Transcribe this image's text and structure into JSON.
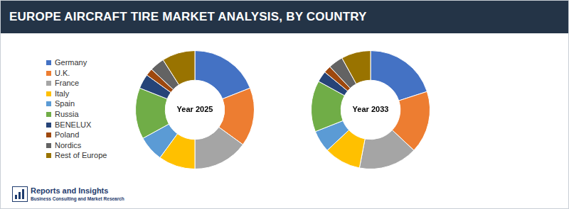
{
  "header": {
    "title": "EUROPE AIRCRAFT TIRE MARKET ANALYSIS, BY COUNTRY"
  },
  "logo": {
    "name": "Reports and Insights",
    "tagline": "Business Consulting and Market Research"
  },
  "chart_data": [
    {
      "type": "doughnut",
      "title": "Year 2025",
      "legend": "left",
      "categories": [
        "Germany",
        "U.K.",
        "France",
        "Italy",
        "Spain",
        "Russia",
        "BENELUX",
        "Poland",
        "Nordics",
        "Rest of Europe"
      ],
      "values": [
        19,
        16,
        15,
        10,
        7,
        14,
        4,
        2,
        4,
        9
      ],
      "colors": [
        "#4472c4",
        "#ed7d31",
        "#a5a5a5",
        "#ffc000",
        "#5b9bd5",
        "#70ad47",
        "#264478",
        "#9e480e",
        "#636363",
        "#997300"
      ]
    },
    {
      "type": "doughnut",
      "title": "Year 2033",
      "categories": [
        "Germany",
        "U.K.",
        "France",
        "Italy",
        "Spain",
        "Russia",
        "BENELUX",
        "Poland",
        "Nordics",
        "Rest of Europe"
      ],
      "values": [
        20,
        17,
        16,
        10,
        6,
        14,
        3,
        2,
        4,
        8
      ],
      "colors": [
        "#4472c4",
        "#ed7d31",
        "#a5a5a5",
        "#ffc000",
        "#5b9bd5",
        "#70ad47",
        "#264478",
        "#9e480e",
        "#636363",
        "#997300"
      ]
    }
  ]
}
